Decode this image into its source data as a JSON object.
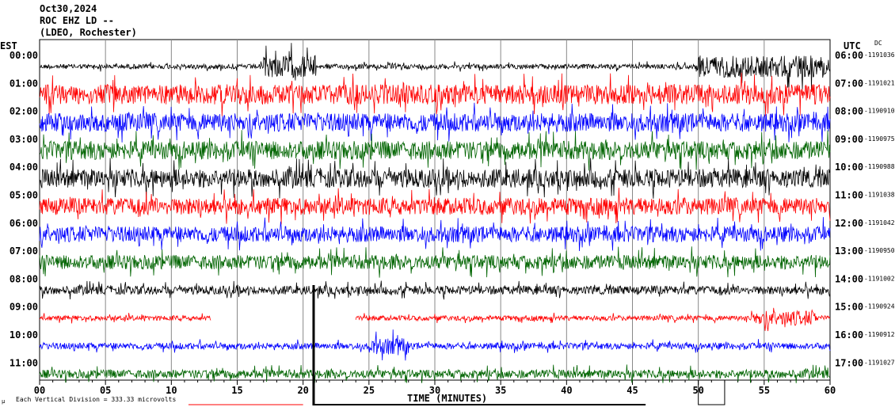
{
  "header": {
    "date": "Oct30,2024",
    "station": "ROC EHZ LD --",
    "network": "(LDEO, Rochester)"
  },
  "left_axis_title": "EST",
  "right_axis_title": "UTC",
  "dc_title": "DC",
  "footer": {
    "unit_icon": "µ",
    "scale_text": "Each Vertical Division =  333.33 microvolts"
  },
  "chart_data": {
    "type": "line",
    "title": "Oct30,2024 ROC EHZ LD -- (LDEO, Rochester)",
    "xlabel": "TIME (MINUTES)",
    "xlim": [
      0,
      60
    ],
    "x_ticks": [
      "00",
      "05",
      "10",
      "15",
      "20",
      "25",
      "30",
      "35",
      "40",
      "45",
      "50",
      "55",
      "60"
    ],
    "trace_colors": [
      "#000000",
      "#ff0000",
      "#0000ff",
      "#006400"
    ],
    "rows": [
      {
        "est": "00:00",
        "utc": "06:00",
        "dc": "-1191036",
        "noise": 1.6
      },
      {
        "est": "01:00",
        "utc": "07:00",
        "dc": "-1191021",
        "noise": 1.4
      },
      {
        "est": "02:00",
        "utc": "08:00",
        "dc": "-1190910",
        "noise": 1.3
      },
      {
        "est": "03:00",
        "utc": "09:00",
        "dc": "-1190975",
        "noise": 1.3
      },
      {
        "est": "04:00",
        "utc": "10:00",
        "dc": "-1190988",
        "noise": 1.3
      },
      {
        "est": "05:00",
        "utc": "11:00",
        "dc": "-1191038",
        "noise": 1.2
      },
      {
        "est": "06:00",
        "utc": "12:00",
        "dc": "-1191042",
        "noise": 1.1
      },
      {
        "est": "07:00",
        "utc": "13:00",
        "dc": "-1190950",
        "noise": 1.0
      },
      {
        "est": "08:00",
        "utc": "14:00",
        "dc": "-1191002",
        "noise": 0.6
      },
      {
        "est": "09:00",
        "utc": "15:00",
        "dc": "-1190924",
        "noise": 0.35
      },
      {
        "est": "10:00",
        "utc": "16:00",
        "dc": "-1190912",
        "noise": 0.45
      },
      {
        "est": "11:00",
        "utc": "17:00",
        "dc": "-1191027",
        "noise": 0.6
      }
    ]
  }
}
